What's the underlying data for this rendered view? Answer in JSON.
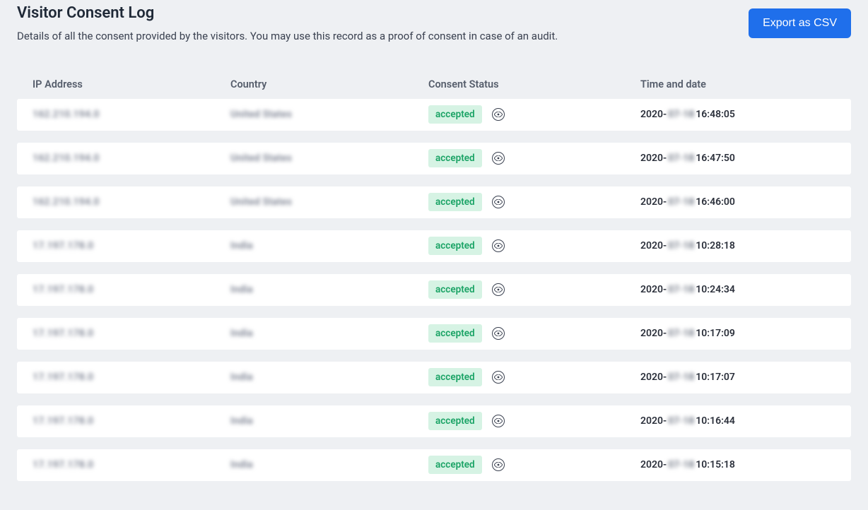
{
  "header": {
    "title": "Visitor Consent Log",
    "subtitle": "Details of all the consent provided by the visitors. You may use this record as a proof of consent in case of an audit.",
    "export_label": "Export as CSV"
  },
  "colors": {
    "page_bg": "#eef0f3",
    "row_bg": "#ffffff",
    "primary_button_bg": "#1f6feb",
    "primary_button_text": "#ffffff",
    "badge_bg": "#d6f3e4",
    "badge_text": "#1aa365",
    "header_text": "#555d6b",
    "body_text": "#2a2f3a"
  },
  "table": {
    "columns": [
      "IP Address",
      "Country",
      "Consent Status",
      "Time and date"
    ],
    "rows": [
      {
        "ip": "162.210.194.0",
        "country": "United States",
        "status": "accepted",
        "date_prefix": "2020-",
        "date_blurred": "07-18",
        "time": "16:48:05"
      },
      {
        "ip": "162.210.194.0",
        "country": "United States",
        "status": "accepted",
        "date_prefix": "2020-",
        "date_blurred": "07-18",
        "time": "16:47:50"
      },
      {
        "ip": "162.210.194.0",
        "country": "United States",
        "status": "accepted",
        "date_prefix": "2020-",
        "date_blurred": "07-18",
        "time": "16:46:00"
      },
      {
        "ip": "17.197.178.0",
        "country": "India",
        "status": "accepted",
        "date_prefix": "2020-",
        "date_blurred": "07-18",
        "time": "10:28:18"
      },
      {
        "ip": "17.197.178.0",
        "country": "India",
        "status": "accepted",
        "date_prefix": "2020-",
        "date_blurred": "07-18",
        "time": "10:24:34"
      },
      {
        "ip": "17.197.178.0",
        "country": "India",
        "status": "accepted",
        "date_prefix": "2020-",
        "date_blurred": "07-18",
        "time": "10:17:09"
      },
      {
        "ip": "17.197.178.0",
        "country": "India",
        "status": "accepted",
        "date_prefix": "2020-",
        "date_blurred": "07-18",
        "time": "10:17:07"
      },
      {
        "ip": "17.197.178.0",
        "country": "India",
        "status": "accepted",
        "date_prefix": "2020-",
        "date_blurred": "07-18",
        "time": "10:16:44"
      },
      {
        "ip": "17.197.178.0",
        "country": "India",
        "status": "accepted",
        "date_prefix": "2020-",
        "date_blurred": "07-18",
        "time": "10:15:18"
      }
    ]
  }
}
